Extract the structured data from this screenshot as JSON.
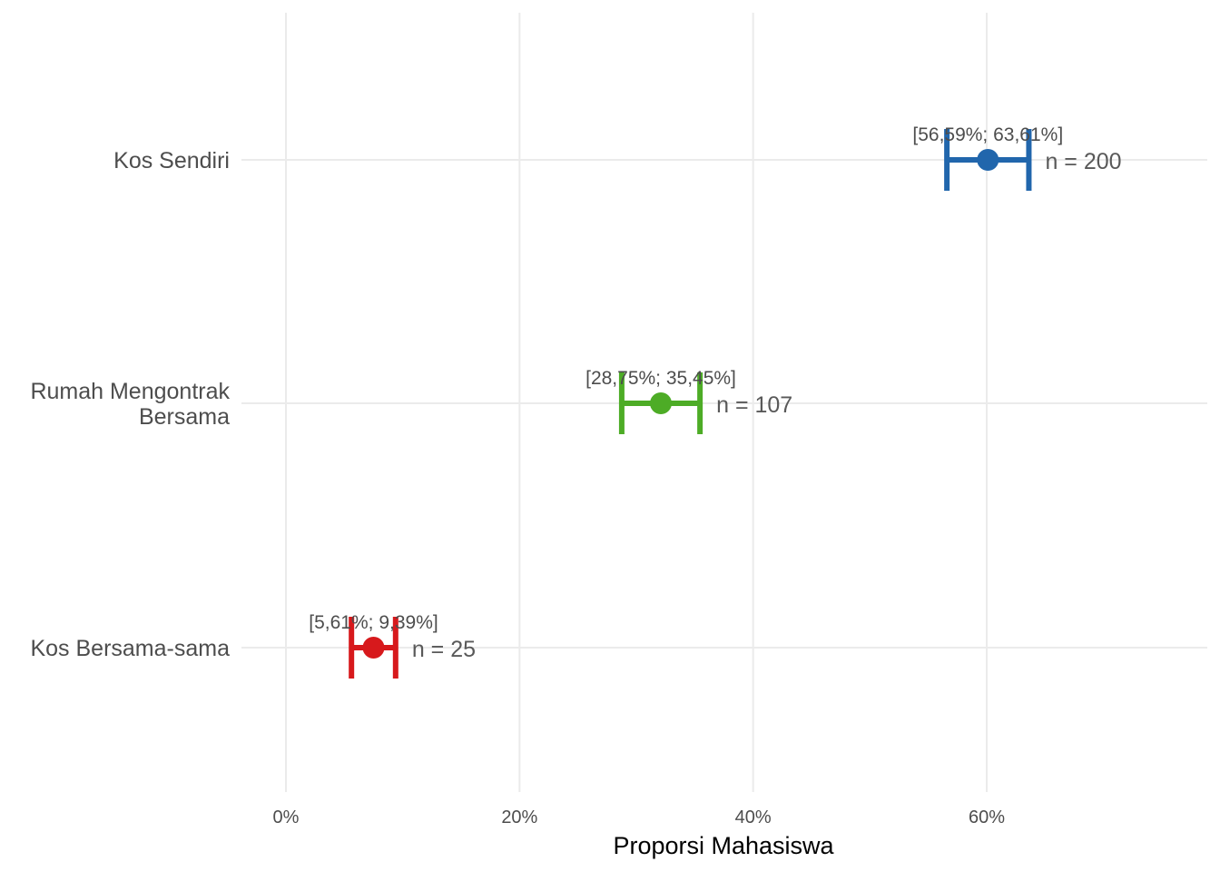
{
  "chart_data": {
    "type": "errorbar",
    "xlabel": "Proporsi Mahasiswa",
    "ylabel": "",
    "xlim": [
      -0.05,
      0.79
    ],
    "x_ticks": [
      0,
      0.2,
      0.4,
      0.6
    ],
    "x_tick_labels": [
      "0%",
      "20%",
      "40%",
      "60%"
    ],
    "grid": true,
    "categories": [
      {
        "label_lines": [
          "Kos Sendiri"
        ],
        "estimate": 0.601,
        "ci_low": 0.5659,
        "ci_high": 0.6361,
        "ci_label": "[56,59%; 63,61%]",
        "n_label": "n = 200",
        "color": "#2166ac"
      },
      {
        "label_lines": [
          "Rumah Mengontrak",
          "Bersama"
        ],
        "estimate": 0.321,
        "ci_low": 0.2875,
        "ci_high": 0.3545,
        "ci_label": "[28,75%; 35,45%]",
        "n_label": "n = 107",
        "color": "#4dac26"
      },
      {
        "label_lines": [
          "Kos Bersama-sama"
        ],
        "estimate": 0.075,
        "ci_low": 0.0561,
        "ci_high": 0.0939,
        "ci_label": "[5,61%; 9,39%]",
        "n_label": "n = 25",
        "color": "#d7191c"
      }
    ]
  }
}
